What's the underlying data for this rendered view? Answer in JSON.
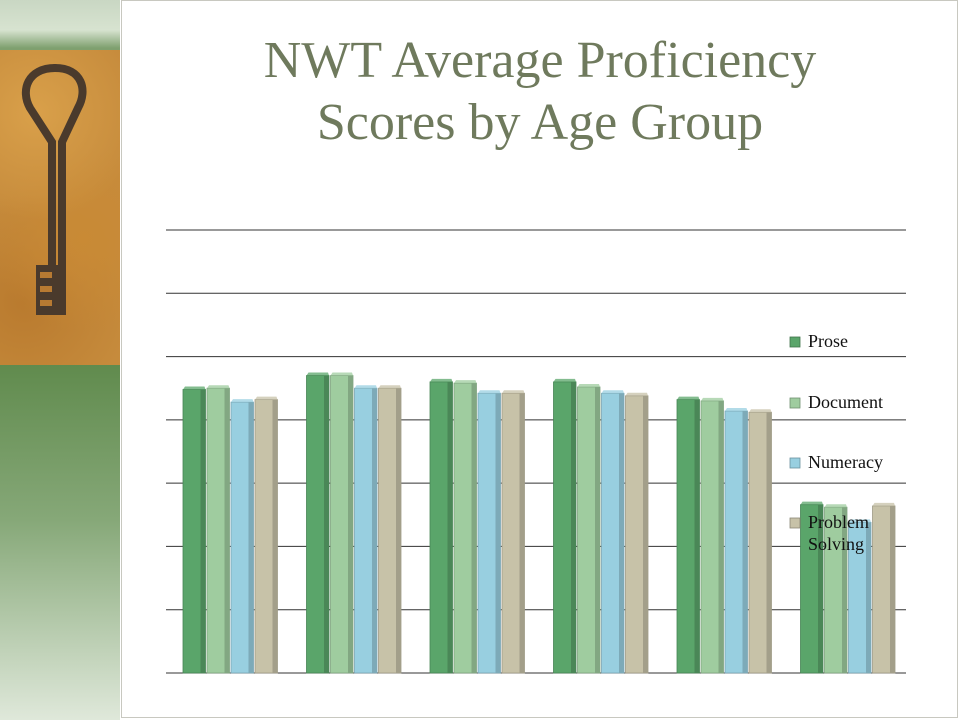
{
  "slide": {
    "title_line1": "NWT Average Proficiency",
    "title_line2": "Scores by Age Group",
    "decoration": "key-photo"
  },
  "colors": {
    "title": "#6f7a5d",
    "series": [
      "#5aa56a",
      "#9fcc9f",
      "#98cfe0",
      "#c7c2a8"
    ]
  },
  "chart_data": {
    "type": "bar",
    "categories": [
      "",
      "",
      "",
      "",
      "",
      ""
    ],
    "series": [
      {
        "name": "Prose",
        "values": [
          274,
          285,
          280,
          280,
          266,
          183
        ]
      },
      {
        "name": "Document",
        "values": [
          275,
          285,
          279,
          276,
          265,
          181
        ]
      },
      {
        "name": "Numeracy",
        "values": [
          264,
          275,
          271,
          271,
          257,
          169
        ]
      },
      {
        "name": "Problem Solving",
        "values": [
          266,
          275,
          271,
          269,
          256,
          182
        ]
      }
    ],
    "ylim": [
      50,
      400
    ],
    "gridlines": 7,
    "grid": true,
    "legend": "right",
    "title": "",
    "xlabel": "",
    "ylabel": ""
  }
}
